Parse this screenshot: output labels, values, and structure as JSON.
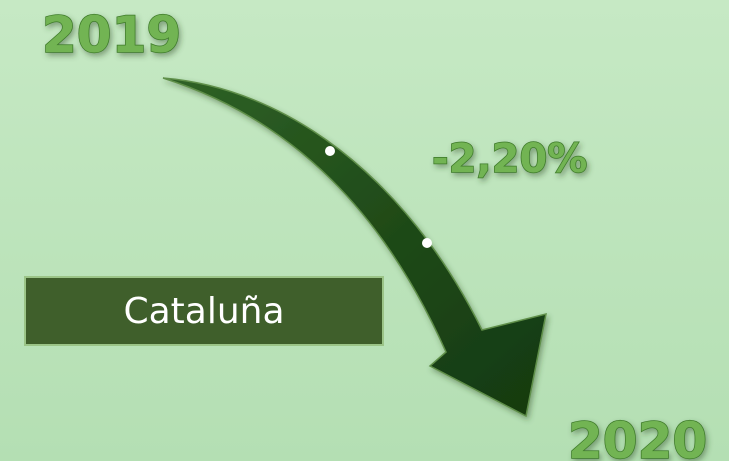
{
  "start_label": "2019",
  "end_label": "2020",
  "change": "-2,20%",
  "region": "Cataluña"
}
